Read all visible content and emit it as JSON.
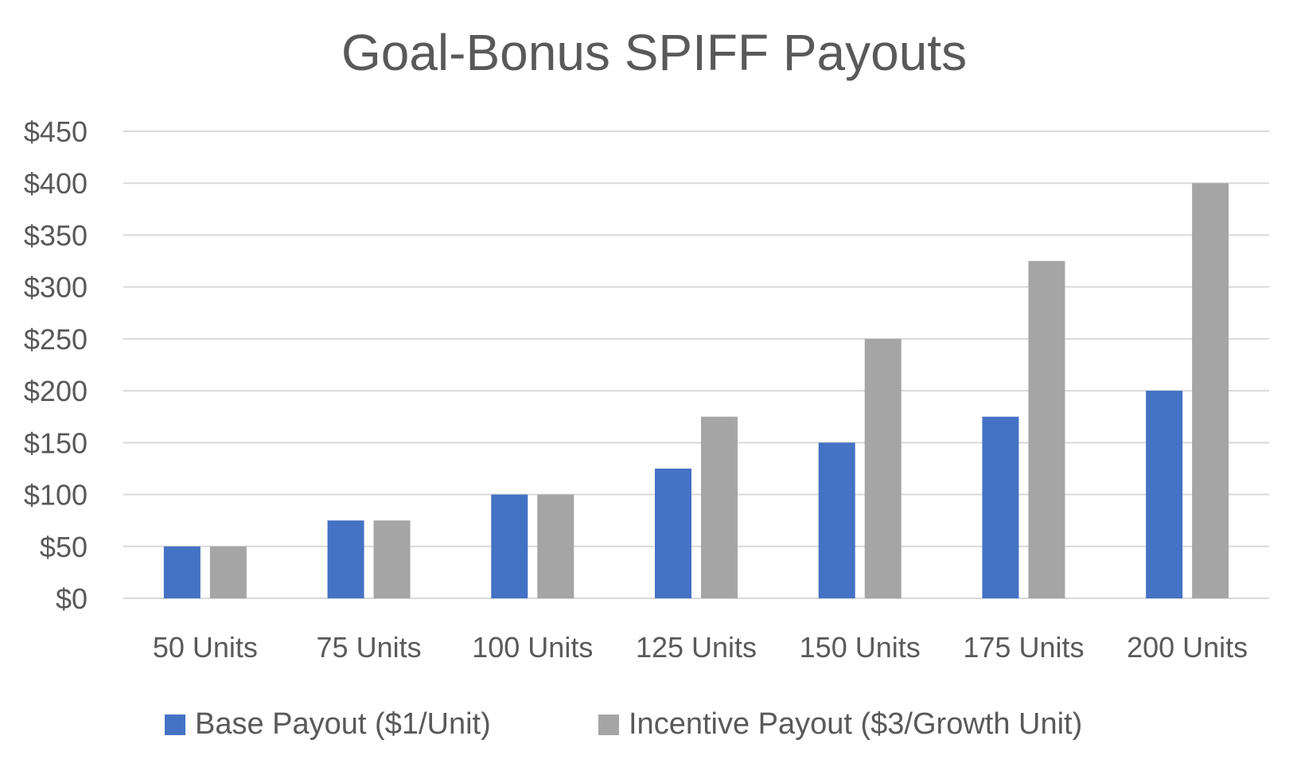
{
  "chart_data": {
    "type": "bar",
    "title": "Goal-Bonus SPIFF Payouts",
    "categories": [
      "50 Units",
      "75 Units",
      "100 Units",
      "125 Units",
      "150 Units",
      "175 Units",
      "200 Units"
    ],
    "series": [
      {
        "name": "Base Payout ($1/Unit)",
        "values": [
          50,
          75,
          100,
          125,
          150,
          175,
          200
        ],
        "color": "#4472c4"
      },
      {
        "name": "Incentive Payout ($3/Growth Unit)",
        "values": [
          50,
          75,
          100,
          175,
          250,
          325,
          400
        ],
        "color": "#a5a5a5"
      }
    ],
    "yticks": [
      "$0",
      "$50",
      "$100",
      "$150",
      "$200",
      "$250",
      "$300",
      "$350",
      "$400",
      "$450"
    ],
    "ylim": [
      0,
      450
    ],
    "grid": true,
    "legend_position": "bottom"
  }
}
